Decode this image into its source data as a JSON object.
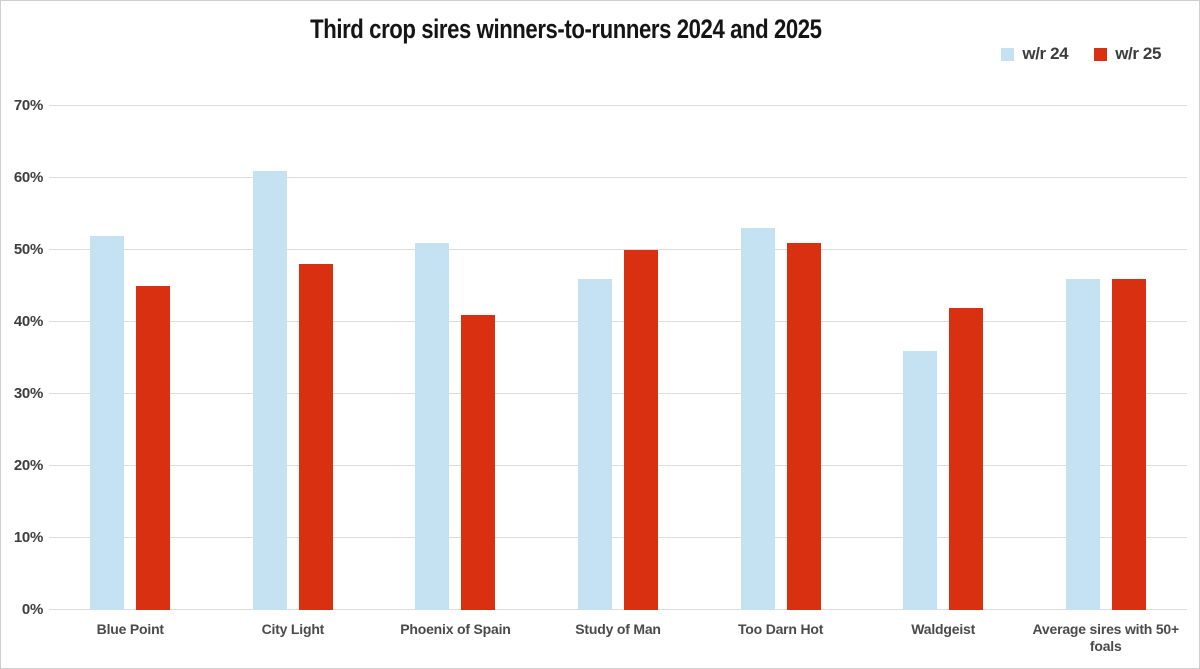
{
  "title": "Third crop sires winners-to-runners 2024 and 2025",
  "chart_data": {
    "type": "bar",
    "title": "Third crop sires winners-to-runners 2024 and 2025",
    "categories": [
      "Blue Point",
      "City Light",
      "Phoenix of Spain",
      "Study of Man",
      "Too Darn Hot",
      "Waldgeist",
      "Average sires with 50+ foals"
    ],
    "series": [
      {
        "name": "w/r 24",
        "color": "#c5e2f2",
        "values": [
          52,
          61,
          51,
          46,
          53,
          36,
          46
        ]
      },
      {
        "name": "w/r 25",
        "color": "#d93011",
        "values": [
          45,
          48,
          41,
          50,
          51,
          42,
          46
        ]
      }
    ],
    "xlabel": "",
    "ylabel": "",
    "y_ticks": [
      "0%",
      "10%",
      "20%",
      "30%",
      "40%",
      "50%",
      "60%",
      "70%"
    ],
    "ylim": [
      0,
      75
    ],
    "grid": true,
    "gridline_color": "#dcdcdc",
    "legend_position": "top-right",
    "background_color": "#ffffff"
  }
}
